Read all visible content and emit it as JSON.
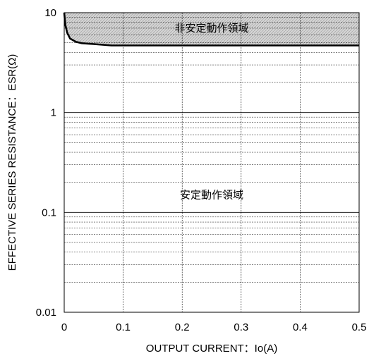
{
  "chart_data": {
    "type": "line",
    "title": "",
    "xlabel": "OUTPUT CURRENT：Io(A)",
    "ylabel": "EFFECTIVE SERIES RESISTANCE：ESR(Ω)",
    "xlim": [
      0,
      0.5
    ],
    "ylim": [
      0.01,
      10
    ],
    "yscale": "log",
    "x_ticks": [
      "0",
      "0.1",
      "0.2",
      "0.3",
      "0.4",
      "0.5"
    ],
    "y_ticks": [
      "0.01",
      "0.1",
      "1",
      "10"
    ],
    "grid": true,
    "series": [
      {
        "x": [
          0,
          0.002,
          0.005,
          0.01,
          0.02,
          0.03,
          0.05,
          0.08,
          0.1,
          0.2,
          0.3,
          0.4,
          0.5
        ],
        "y": [
          10,
          7.5,
          6.3,
          5.5,
          5.1,
          4.95,
          4.85,
          4.7,
          4.7,
          4.7,
          4.7,
          4.7,
          4.7
        ]
      }
    ],
    "annotations": [
      {
        "text": "非安定動作領域",
        "x": 0.25,
        "y": 7.0
      },
      {
        "text": "安定動作領域",
        "x": 0.25,
        "y": 0.15
      }
    ],
    "unstable_region_fill": "#cfcfcf"
  }
}
